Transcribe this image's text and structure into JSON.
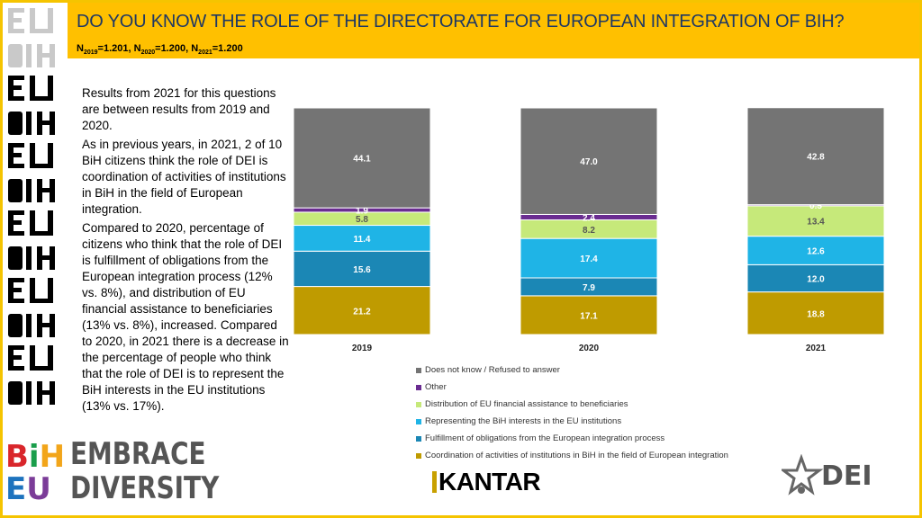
{
  "header": {
    "title": "DO YOU KNOW THE ROLE OF THE DIRECTORATE FOR EUROPEAN INTEGRATION OF BIH?",
    "sample": [
      {
        "prefix": "N",
        "sub": "2019",
        "value": "=1.201, "
      },
      {
        "prefix": "N",
        "sub": "2020",
        "value": "=1.200, "
      },
      {
        "prefix": "N",
        "sub": "2021",
        "value": "=1.200"
      }
    ]
  },
  "text_panel": {
    "paragraphs": [
      "Results from 2021 for this questions are between results from 2019 and 2020.",
      "As in previous years, in 2021, 2 of 10 BiH citizens think the role of DEI is coordination of activities of institutions in BiH in the field of European integration.",
      "Compared to 2020, percentage of citizens who think that the role of DEI is fulfillment of obligations from the European integration process (12% vs. 8%), and distribution of EU financial assistance to beneficiaries (13% vs. 8%), increased. Compared to 2020, in 2021 there is a decrease in the percentage of people who think that the role of DEI is to represent the BiH interests in the EU institutions (13% vs. 17%)."
    ]
  },
  "logos": {
    "embrace_line1": "EMBRACE",
    "embrace_line2": "DIVERSITY",
    "bih_letters": [
      "B",
      "i",
      "H"
    ],
    "eu_letters": [
      "E",
      "U"
    ],
    "kantar": "KANTAR",
    "dei": "DEI"
  },
  "chart_data": {
    "type": "bar",
    "stacked": true,
    "categories": [
      "2019",
      "2020",
      "2021"
    ],
    "ylim": [
      0,
      100
    ],
    "series": [
      {
        "name": "Coordination of activities of institutions in BiH in the field of European integration",
        "color": "#BF9B00",
        "values": [
          21.2,
          17.1,
          18.8
        ]
      },
      {
        "name": "Fulfillment of obligations from the European integration process",
        "color": "#1B87B5",
        "values": [
          15.6,
          7.9,
          12.0
        ]
      },
      {
        "name": "Representing the BiH interests in the EU institutions",
        "color": "#1FB4E6",
        "values": [
          11.4,
          17.4,
          12.6
        ]
      },
      {
        "name": "Distribution of EU financial assistance to beneficiaries",
        "color": "#C6E97A",
        "values": [
          5.8,
          8.2,
          13.4
        ]
      },
      {
        "name": "Other",
        "color": "#6A2C91",
        "values": [
          1.9,
          2.4,
          0.5
        ]
      },
      {
        "name": "Does not know / Refused to answer",
        "color": "#747474",
        "values": [
          44.1,
          47.0,
          42.8
        ]
      }
    ],
    "legend_order": [
      5,
      4,
      3,
      2,
      1,
      0
    ],
    "legend_position": "bottom"
  }
}
